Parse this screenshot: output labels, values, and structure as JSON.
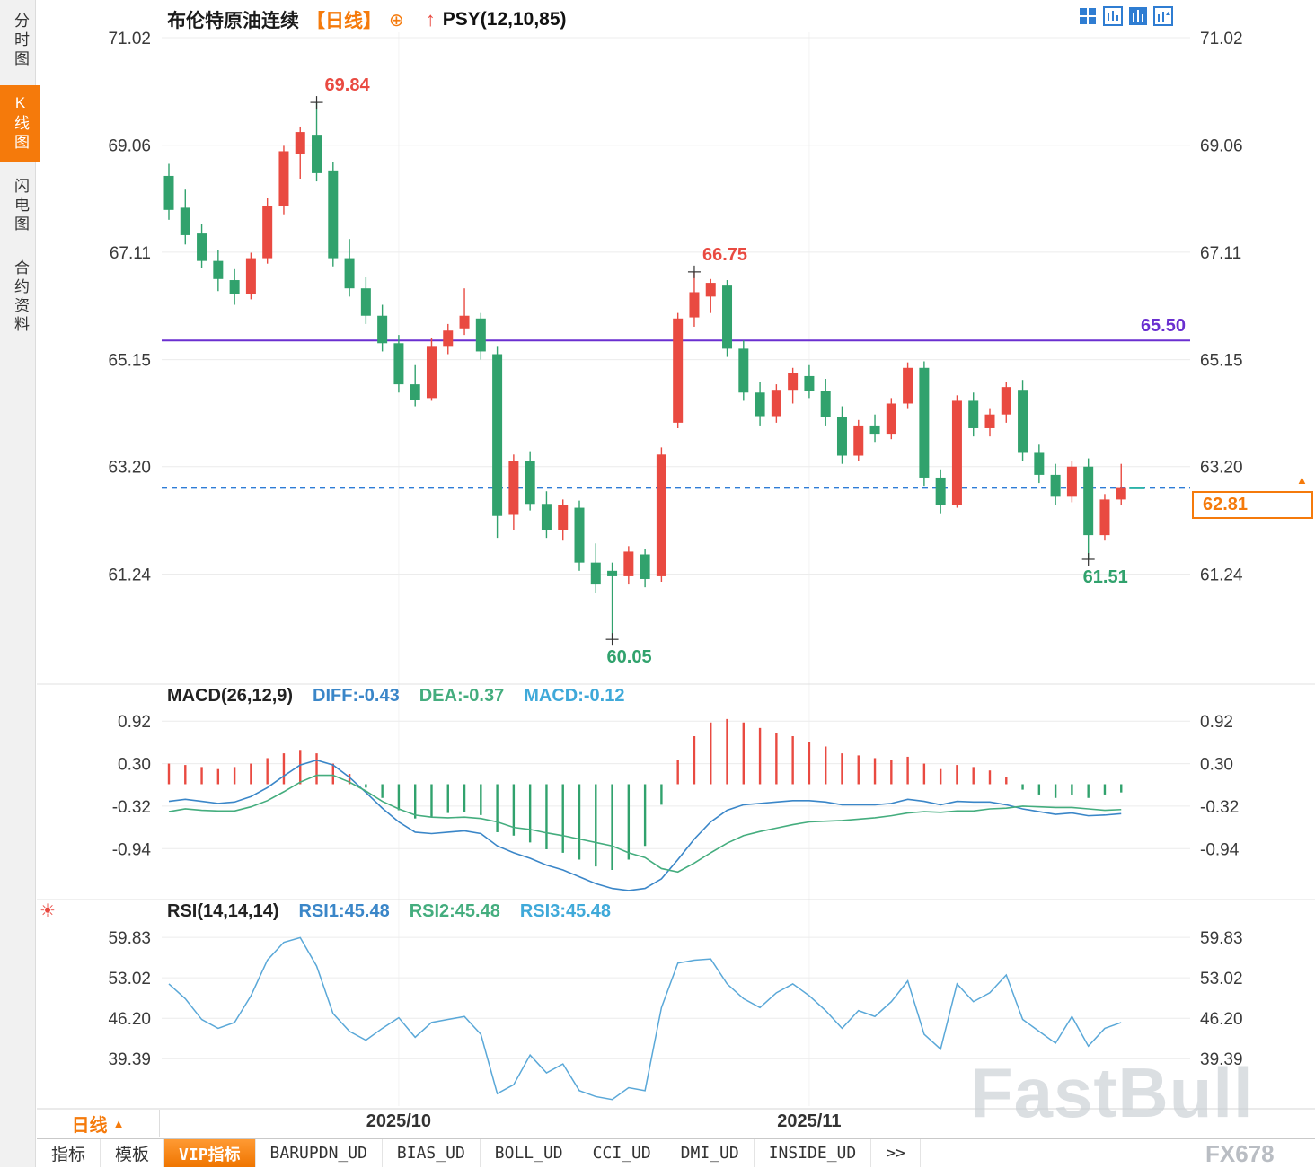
{
  "colors": {
    "up": "#e94a41",
    "down": "#31a26d",
    "accent": "#f57a0b",
    "purple_line": "#6a2fd0",
    "dashed_line": "#2e7cd6",
    "macd_diff": "#3a86c8",
    "macd_dea": "#44ad7e",
    "rsi_line": "#5aa8d8",
    "current_dash": "#2bb3a8",
    "grid": "#ececec",
    "axis_text": "#3a3a3a"
  },
  "icons": {
    "sun": "☀",
    "price_marker": "▲"
  },
  "sidebar": {
    "items": [
      {
        "name": "sidebar-tab-time-chart",
        "label": "分时图",
        "active": false
      },
      {
        "name": "sidebar-tab-kline-chart",
        "label": "K线图",
        "active": true
      },
      {
        "name": "sidebar-tab-flash-chart",
        "label": "闪电图",
        "active": false
      },
      {
        "name": "sidebar-tab-contract-info",
        "label": "合约资料",
        "active": false
      }
    ]
  },
  "header": {
    "symbol": "布伦特原油连续",
    "period_tag": "【日线】",
    "plus_icon": "⊕",
    "arrow_icon": "↑",
    "indicator": "PSY(12,10,85)"
  },
  "main_chart": {
    "y_ticks": [
      "71.02",
      "69.06",
      "67.11",
      "65.15",
      "63.20",
      "61.24"
    ],
    "hline": {
      "label": "65.50",
      "value": 65.5
    },
    "last_price": {
      "label": "62.81",
      "value": 62.81
    },
    "annotations": [
      {
        "text": "69.84",
        "index": 9,
        "value": 69.84,
        "color": "red",
        "placement": "above"
      },
      {
        "text": "66.75",
        "index": 32,
        "value": 66.75,
        "color": "red",
        "placement": "above"
      },
      {
        "text": "60.05",
        "index": 27,
        "value": 60.05,
        "color": "green",
        "placement": "below"
      },
      {
        "text": "61.51",
        "index": 56,
        "value": 61.51,
        "color": "green",
        "placement": "below"
      }
    ]
  },
  "macd_panel": {
    "title": "MACD(26,12,9)",
    "labels": [
      {
        "text": "DIFF:-0.43",
        "color": "#3a86c8"
      },
      {
        "text": "DEA:-0.37",
        "color": "#44ad7e"
      },
      {
        "text": "MACD:-0.12",
        "color": "#3fa9d9"
      }
    ],
    "y_ticks": [
      "0.92",
      "0.30",
      "-0.32",
      "-0.94"
    ]
  },
  "rsi_panel": {
    "title": "RSI(14,14,14)",
    "labels": [
      {
        "text": "RSI1:45.48",
        "color": "#3a86c8"
      },
      {
        "text": "RSI2:45.48",
        "color": "#44ad7e"
      },
      {
        "text": "RSI3:45.48",
        "color": "#3fa9d9"
      }
    ],
    "y_ticks": [
      "59.83",
      "53.02",
      "46.20",
      "39.39"
    ]
  },
  "x_axis": {
    "labels": [
      {
        "text": "2025/10",
        "index": 14
      },
      {
        "text": "2025/11",
        "index": 39
      }
    ]
  },
  "period_box": {
    "label": "日线",
    "arrow": "▲"
  },
  "footer_tabs": [
    {
      "name": "tab-indicators",
      "label": "指标",
      "active": false
    },
    {
      "name": "tab-templates",
      "label": "模板",
      "active": false
    },
    {
      "name": "tab-vip-indicators",
      "label": "VIP指标",
      "active": true
    },
    {
      "name": "tab-barupdn",
      "label": "BARUPDN_UD",
      "active": false
    },
    {
      "name": "tab-bias",
      "label": "BIAS_UD",
      "active": false
    },
    {
      "name": "tab-boll",
      "label": "BOLL_UD",
      "active": false
    },
    {
      "name": "tab-cci",
      "label": "CCI_UD",
      "active": false
    },
    {
      "name": "tab-dmi",
      "label": "DMI_UD",
      "active": false
    },
    {
      "name": "tab-inside",
      "label": "INSIDE_UD",
      "active": false
    },
    {
      "name": "tab-more",
      "label": ">>",
      "active": false
    }
  ],
  "watermark": {
    "main": "FastBull",
    "sub": "FX678"
  },
  "chart_data": {
    "type": "candlestick",
    "symbol": "布伦特原油连续",
    "interval": "日线",
    "panels": [
      "price",
      "MACD(26,12,9)",
      "RSI(14,14,14)"
    ],
    "price_ylim": [
      59.3,
      71.02
    ],
    "candles": [
      [
        68.5,
        68.72,
        67.7,
        67.88
      ],
      [
        67.92,
        68.25,
        67.25,
        67.42
      ],
      [
        67.45,
        67.62,
        66.82,
        66.95
      ],
      [
        66.95,
        67.15,
        66.4,
        66.62
      ],
      [
        66.6,
        66.8,
        66.15,
        66.35
      ],
      [
        66.35,
        67.1,
        66.25,
        67.0
      ],
      [
        67.0,
        68.1,
        66.9,
        67.95
      ],
      [
        67.95,
        69.05,
        67.8,
        68.95
      ],
      [
        68.9,
        69.4,
        68.45,
        69.3
      ],
      [
        69.25,
        69.84,
        68.4,
        68.55
      ],
      [
        68.6,
        68.75,
        66.85,
        67.0
      ],
      [
        67.0,
        67.35,
        66.3,
        66.45
      ],
      [
        66.45,
        66.65,
        65.8,
        65.95
      ],
      [
        65.95,
        66.15,
        65.3,
        65.45
      ],
      [
        65.45,
        65.6,
        64.55,
        64.7
      ],
      [
        64.7,
        65.05,
        64.3,
        64.42
      ],
      [
        64.45,
        65.55,
        64.4,
        65.4
      ],
      [
        65.4,
        65.8,
        65.25,
        65.68
      ],
      [
        65.72,
        66.45,
        65.6,
        65.95
      ],
      [
        65.9,
        66.0,
        65.15,
        65.3
      ],
      [
        65.25,
        65.4,
        61.9,
        62.3
      ],
      [
        62.32,
        63.42,
        62.05,
        63.3
      ],
      [
        63.3,
        63.48,
        62.4,
        62.52
      ],
      [
        62.52,
        62.75,
        61.9,
        62.05
      ],
      [
        62.05,
        62.6,
        61.85,
        62.5
      ],
      [
        62.45,
        62.58,
        61.3,
        61.45
      ],
      [
        61.45,
        61.8,
        60.9,
        61.05
      ],
      [
        61.3,
        61.45,
        60.05,
        61.2
      ],
      [
        61.2,
        61.75,
        61.05,
        61.65
      ],
      [
        61.6,
        61.7,
        61.0,
        61.15
      ],
      [
        61.2,
        63.55,
        61.1,
        63.42
      ],
      [
        64.0,
        66.0,
        63.9,
        65.9
      ],
      [
        65.92,
        66.75,
        65.75,
        66.38
      ],
      [
        66.3,
        66.62,
        66.0,
        66.55
      ],
      [
        66.5,
        66.6,
        65.2,
        65.35
      ],
      [
        65.35,
        65.5,
        64.4,
        64.55
      ],
      [
        64.55,
        64.75,
        63.95,
        64.12
      ],
      [
        64.12,
        64.7,
        64.0,
        64.6
      ],
      [
        64.6,
        65.0,
        64.35,
        64.9
      ],
      [
        64.85,
        65.05,
        64.45,
        64.58
      ],
      [
        64.58,
        64.8,
        63.95,
        64.1
      ],
      [
        64.1,
        64.3,
        63.25,
        63.4
      ],
      [
        63.4,
        64.05,
        63.3,
        63.95
      ],
      [
        63.95,
        64.15,
        63.65,
        63.8
      ],
      [
        63.8,
        64.45,
        63.7,
        64.35
      ],
      [
        64.35,
        65.1,
        64.25,
        65.0
      ],
      [
        65.0,
        65.12,
        62.85,
        63.0
      ],
      [
        63.0,
        63.15,
        62.35,
        62.5
      ],
      [
        62.5,
        64.5,
        62.45,
        64.4
      ],
      [
        64.4,
        64.55,
        63.75,
        63.9
      ],
      [
        63.9,
        64.25,
        63.75,
        64.15
      ],
      [
        64.15,
        64.75,
        64.0,
        64.65
      ],
      [
        64.6,
        64.78,
        63.3,
        63.45
      ],
      [
        63.45,
        63.6,
        62.9,
        63.05
      ],
      [
        63.05,
        63.25,
        62.5,
        62.65
      ],
      [
        62.65,
        63.3,
        62.55,
        63.2
      ],
      [
        63.2,
        63.35,
        61.51,
        61.95
      ],
      [
        61.95,
        62.7,
        61.85,
        62.6
      ],
      [
        62.6,
        63.25,
        62.5,
        62.81
      ]
    ],
    "macd": {
      "ylim": [
        -1.63,
        1.25
      ],
      "diff": [
        -0.25,
        -0.22,
        -0.25,
        -0.28,
        -0.26,
        -0.18,
        -0.05,
        0.12,
        0.28,
        0.35,
        0.28,
        0.1,
        -0.12,
        -0.35,
        -0.55,
        -0.7,
        -0.72,
        -0.7,
        -0.68,
        -0.72,
        -0.9,
        -1.0,
        -1.08,
        -1.18,
        -1.25,
        -1.35,
        -1.45,
        -1.52,
        -1.55,
        -1.52,
        -1.38,
        -1.1,
        -0.8,
        -0.55,
        -0.38,
        -0.3,
        -0.28,
        -0.26,
        -0.24,
        -0.24,
        -0.26,
        -0.3,
        -0.3,
        -0.3,
        -0.28,
        -0.22,
        -0.25,
        -0.3,
        -0.25,
        -0.26,
        -0.26,
        -0.3,
        -0.36,
        -0.4,
        -0.44,
        -0.42,
        -0.46,
        -0.45,
        -0.43
      ],
      "dea": [
        -0.4,
        -0.36,
        -0.38,
        -0.39,
        -0.39,
        -0.33,
        -0.24,
        -0.11,
        0.03,
        0.13,
        0.13,
        0.03,
        -0.1,
        -0.25,
        -0.36,
        -0.45,
        -0.48,
        -0.49,
        -0.48,
        -0.5,
        -0.55,
        -0.63,
        -0.66,
        -0.71,
        -0.75,
        -0.8,
        -0.85,
        -0.9,
        -1.0,
        -1.07,
        -1.23,
        -1.28,
        -1.15,
        -1.0,
        -0.86,
        -0.75,
        -0.69,
        -0.64,
        -0.59,
        -0.55,
        -0.54,
        -0.53,
        -0.51,
        -0.49,
        -0.46,
        -0.42,
        -0.4,
        -0.41,
        -0.39,
        -0.39,
        -0.36,
        -0.35,
        -0.32,
        -0.33,
        -0.34,
        -0.34,
        -0.36,
        -0.38,
        -0.37
      ],
      "hist": [
        0.3,
        0.28,
        0.25,
        0.22,
        0.25,
        0.3,
        0.38,
        0.45,
        0.5,
        0.45,
        0.3,
        0.15,
        -0.05,
        -0.2,
        -0.38,
        -0.5,
        -0.48,
        -0.42,
        -0.4,
        -0.45,
        -0.7,
        -0.75,
        -0.85,
        -0.95,
        -1.0,
        -1.1,
        -1.2,
        -1.25,
        -1.1,
        -0.9,
        -0.3,
        0.35,
        0.7,
        0.9,
        0.95,
        0.9,
        0.82,
        0.75,
        0.7,
        0.62,
        0.55,
        0.45,
        0.42,
        0.38,
        0.35,
        0.4,
        0.3,
        0.22,
        0.28,
        0.25,
        0.2,
        0.1,
        -0.08,
        -0.15,
        -0.2,
        -0.16,
        -0.2,
        -0.15,
        -0.12
      ]
    },
    "rsi": {
      "ylim": [
        31.4,
        64.7
      ],
      "values": [
        52.0,
        49.5,
        46.0,
        44.5,
        45.5,
        50.0,
        56.0,
        59.0,
        59.8,
        55.0,
        47.0,
        44.0,
        42.5,
        44.5,
        46.3,
        43.0,
        45.5,
        46.0,
        46.5,
        43.5,
        33.5,
        35.0,
        40.0,
        37.0,
        38.5,
        34.0,
        33.0,
        32.5,
        34.5,
        34.0,
        48.0,
        55.5,
        56.0,
        56.2,
        52.0,
        49.5,
        48.0,
        50.5,
        52.0,
        50.0,
        47.5,
        44.5,
        47.5,
        46.5,
        49.0,
        52.5,
        43.5,
        41.0,
        52.0,
        49.0,
        50.5,
        53.5,
        46.0,
        44.0,
        42.0,
        46.5,
        41.5,
        44.5,
        45.48
      ]
    }
  }
}
